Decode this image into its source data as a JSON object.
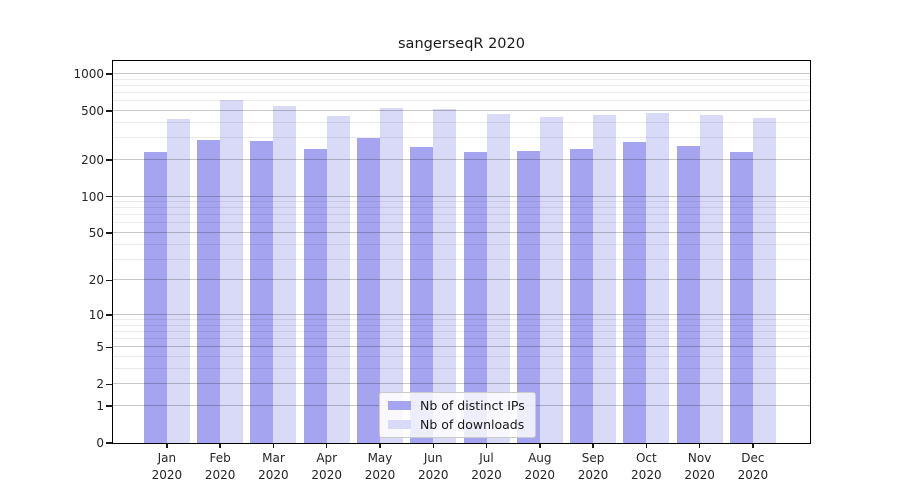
{
  "title": "sangerseqR 2020",
  "legend": {
    "items": [
      {
        "label": "Nb of distinct IPs",
        "color": "#a4a4f1"
      },
      {
        "label": "Nb of downloads",
        "color": "#d9d9f8"
      }
    ]
  },
  "chart_data": {
    "type": "bar",
    "title": "sangerseqR 2020",
    "categories": [
      "Jan 2020",
      "Feb 2020",
      "Mar 2020",
      "Apr 2020",
      "May 2020",
      "Jun 2020",
      "Jul 2020",
      "Aug 2020",
      "Sep 2020",
      "Oct 2020",
      "Nov 2020",
      "Dec 2020"
    ],
    "x_months": [
      "Jan",
      "Feb",
      "Mar",
      "Apr",
      "May",
      "Jun",
      "Jul",
      "Aug",
      "Sep",
      "Oct",
      "Nov",
      "Dec"
    ],
    "x_year": "2020",
    "series": [
      {
        "name": "Nb of distinct IPs",
        "color": "#a4a4f1",
        "values": [
          231,
          290,
          285,
          245,
          300,
          255,
          231,
          236,
          245,
          280,
          259,
          231
        ]
      },
      {
        "name": "Nb of downloads",
        "color": "#d9d9f8",
        "values": [
          430,
          614,
          550,
          455,
          528,
          520,
          470,
          447,
          464,
          482,
          464,
          439
        ]
      }
    ],
    "yscale": "log1p",
    "yticks": [
      0,
      1,
      2,
      5,
      10,
      20,
      50,
      100,
      200,
      500,
      1000
    ],
    "minor_yticks": [
      3,
      4,
      6,
      7,
      8,
      9,
      30,
      40,
      60,
      70,
      80,
      90,
      300,
      400,
      600,
      700,
      800,
      900
    ],
    "ylim": [
      0,
      1276
    ],
    "xlabel": "",
    "ylabel": "",
    "grid": true,
    "legend_position": "lower center"
  },
  "colors": {
    "axis": "#000000",
    "tick_text": "#262626",
    "grid_major": "#c6c6c6",
    "grid_minor": "#ececec",
    "background": "#ffffff"
  }
}
